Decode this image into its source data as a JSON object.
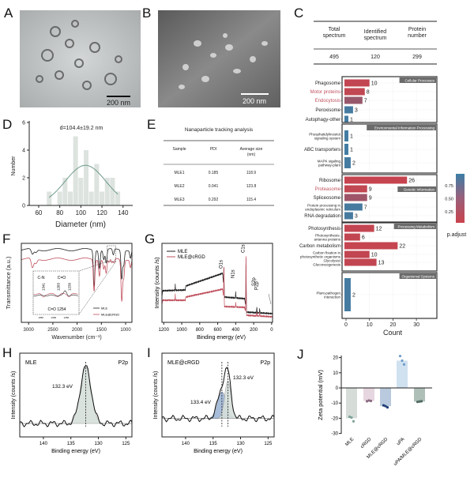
{
  "panel_labels": {
    "a": "A",
    "b": "B",
    "c": "C",
    "d": "D",
    "e": "E",
    "f": "F",
    "g": "G",
    "h": "H",
    "i": "I",
    "j": "J"
  },
  "panel_a": {
    "scale_bar": "200 nm"
  },
  "panel_b": {
    "scale_bar": "200 nm"
  },
  "panel_c_table": {
    "headers": [
      [
        "Total",
        "spectrum"
      ],
      [
        "Identified",
        "spectrum"
      ],
      [
        "Protein",
        "number"
      ]
    ],
    "values": [
      "495",
      "120",
      "299"
    ]
  },
  "panel_e": {
    "title": "Nanaparticle tracking analysis",
    "headers": [
      "Sample",
      "PDI",
      [
        "Average size",
        "(nm)"
      ]
    ],
    "rows": [
      [
        "MLE1",
        "0.185",
        "118.9"
      ],
      [
        "MLE2",
        "0.041",
        "123.8"
      ],
      [
        "MLE3",
        "0.292",
        "115.4"
      ]
    ]
  },
  "chart_data": [
    {
      "panel": "C",
      "type": "bar",
      "orientation": "horizontal",
      "xlabel": "Count",
      "xticks": [
        0,
        10,
        20,
        30
      ],
      "legend": {
        "title": "p.adjust",
        "ticks": [
          0.25,
          0.5,
          0.75
        ],
        "placement": "right",
        "low_color": "#c9434d",
        "high_color": "#3c7fa6"
      },
      "grid": true,
      "groups": [
        {
          "name": "Cellular Processes",
          "items": [
            {
              "label": "Phagosome",
              "count": 10,
              "p_adjust": 0.05
            },
            {
              "label": "Motor proteins",
              "count": 8,
              "p_adjust": 0.06,
              "label_color": "#c0505e"
            },
            {
              "label": "Endocytosis",
              "count": 7,
              "p_adjust": 0.35,
              "label_color": "#c0505e"
            },
            {
              "label": "Peroxisome",
              "count": 3,
              "p_adjust": 0.93
            },
            {
              "label": "Autophagy-other",
              "count": 1,
              "p_adjust": 0.95
            }
          ]
        },
        {
          "name": "Environmental Information Processing",
          "items": [
            {
              "label": "Phosphatidylinositol\nsignaling system",
              "count": 1,
              "p_adjust": 0.95
            },
            {
              "label": "ABC transporters",
              "count": 1,
              "p_adjust": 0.95
            },
            {
              "label": "MAPK sigaling\npathway-plant",
              "count": 2,
              "p_adjust": 0.93
            }
          ]
        },
        {
          "name": "Genetic Information",
          "items": [
            {
              "label": "Ribosome",
              "count": 26,
              "p_adjust": 0.02
            },
            {
              "label": "Proteasome",
              "count": 9,
              "p_adjust": 0.06,
              "label_color": "#c0505e"
            },
            {
              "label": "Spliceosome",
              "count": 9,
              "p_adjust": 0.3
            },
            {
              "label": "Protein processing in\nendoplasmic reticulum",
              "count": 7,
              "p_adjust": 0.92
            },
            {
              "label": "RNA degradation",
              "count": 3,
              "p_adjust": 0.92
            }
          ]
        },
        {
          "name": "Processing Metabolism",
          "items": [
            {
              "label": "Photosynthesis",
              "count": 12,
              "p_adjust": 0.04
            },
            {
              "label": "Photosynthesis-\nantenna proteins",
              "count": 6,
              "p_adjust": 0.05
            },
            {
              "label": "Carbon metabolism",
              "count": 22,
              "p_adjust": 0.03
            },
            {
              "label": "Carbon fixation in\nphotosynthetic organisms",
              "count": 10,
              "p_adjust": 0.05
            },
            {
              "label": "Glycolysis/\nGluconeogenesis",
              "count": 13,
              "p_adjust": 0.05
            }
          ]
        },
        {
          "name": "Organismal Systems",
          "items": [
            {
              "label": "Plant-pathogen\ninteraction",
              "count": 2,
              "p_adjust": 0.93
            }
          ]
        }
      ]
    },
    {
      "panel": "D",
      "type": "bar",
      "title": "d=104.4±19.2 nm",
      "xlabel": "Diameter (nm)",
      "ylabel": "Number",
      "xlim": [
        50,
        150
      ],
      "ylim": [
        0,
        6
      ],
      "xticks": [
        60,
        80,
        100,
        120,
        140
      ],
      "yticks": [
        0,
        2,
        4,
        6
      ],
      "bin_centers": [
        70,
        75,
        80,
        85,
        90,
        95,
        100,
        105,
        110,
        115,
        120,
        125,
        130,
        135
      ],
      "values": [
        1,
        0,
        1,
        2,
        1,
        5,
        2,
        4,
        1,
        3,
        1,
        2,
        2,
        1
      ],
      "fit": {
        "type": "gaussian",
        "mean": 104.4,
        "sd": 19.2,
        "peak": 2.9
      },
      "bar_color": "#dde3df",
      "fit_color": "#6e9a8a"
    },
    {
      "panel": "F",
      "type": "line",
      "xlabel": "Wavenumber (cm⁻¹)",
      "ylabel": "Transmittance (a.u.)",
      "xlim": [
        3150,
        870
      ],
      "xticks": [
        3000,
        2500,
        2000,
        1500,
        1000
      ],
      "series": [
        {
          "name": "MLE",
          "color": "#222222",
          "baseline": 92,
          "bands": [
            [
              2920,
              7
            ],
            [
              2850,
              4
            ],
            [
              1650,
              46
            ],
            [
              1540,
              22
            ],
            [
              1450,
              12
            ],
            [
              1400,
              17
            ],
            [
              1254,
              8
            ],
            [
              1080,
              36
            ],
            [
              1040,
              18
            ],
            [
              900,
              10
            ]
          ]
        },
        {
          "name": "MLE@cRGD",
          "color": "#c0505e",
          "baseline": 80,
          "bands": [
            [
              2920,
              12
            ],
            [
              2850,
              6
            ],
            [
              1650,
              40
            ],
            [
              1540,
              20
            ],
            [
              1450,
              12
            ],
            [
              1400,
              18
            ],
            [
              1341,
              5
            ],
            [
              1283,
              6
            ],
            [
              1239,
              6
            ],
            [
              1080,
              52
            ],
            [
              1040,
              22
            ],
            [
              900,
              10
            ]
          ]
        }
      ],
      "inset": {
        "xticks": [
          1350,
          1300,
          1250
        ],
        "annotations": [
          "C-N",
          "C=O",
          "1341",
          "1283",
          "1239",
          "C=O 1254"
        ]
      }
    },
    {
      "panel": "G",
      "type": "line",
      "xlabel": "Binding energy (eV)",
      "ylabel": "Intensity (counts /s)",
      "xlim": [
        1220,
        -10
      ],
      "xticks": [
        1200,
        1000,
        800,
        600,
        400,
        200,
        0
      ],
      "peaks": [
        {
          "label": "O1s",
          "energy": 531
        },
        {
          "label": "N1s",
          "energy": 400
        },
        {
          "label": "C1s",
          "energy": 285
        },
        {
          "label": "S2p",
          "energy": 165
        },
        {
          "label": "P2p",
          "energy": 133
        }
      ],
      "series": [
        {
          "name": "MLE",
          "color": "#222222",
          "background": [
            [
              1220,
              32
            ],
            [
              1212,
              40
            ],
            [
              960,
              41
            ],
            [
              955,
              46
            ],
            [
              545,
              62
            ],
            [
              525,
              32
            ],
            [
              300,
              30
            ],
            [
              282,
              13
            ],
            [
              -10,
              11
            ]
          ],
          "peak_heights": {
            "O1s": 30,
            "N1s": 7,
            "C1s": 62,
            "S2p": 7,
            "P2p": 5
          }
        },
        {
          "name": "MLE@cRGD",
          "color": "#c0505e",
          "background": [
            [
              1220,
              22
            ],
            [
              1212,
              28
            ],
            [
              960,
              28
            ],
            [
              955,
              32
            ],
            [
              545,
              42
            ],
            [
              525,
              20
            ],
            [
              300,
              19
            ],
            [
              282,
              9
            ],
            [
              -10,
              7
            ]
          ],
          "peak_heights": {
            "O1s": 48,
            "N1s": 5,
            "C1s": 80,
            "S2p": 5,
            "P2p": 4
          }
        }
      ]
    },
    {
      "panel": "H",
      "type": "line",
      "sample": "MLE",
      "region": "P2p",
      "xlabel": "Binding energy (eV)",
      "ylabel": "Intensity (counts /s)",
      "xlim": [
        144.3,
        123.9
      ],
      "xticks": [
        140,
        135,
        130,
        125
      ],
      "components": [
        {
          "center": 132.3,
          "label": "132.3 eV",
          "amplitude": 68,
          "fwhm": 2.3,
          "color": "#d6dfdb"
        }
      ],
      "baseline": 16
    },
    {
      "panel": "I",
      "type": "line",
      "sample": "MLE@cRGD",
      "region": "P2p",
      "xlabel": "Binding energy (eV)",
      "ylabel": "Intensity (counts /s)",
      "xlim": [
        144.3,
        123.9
      ],
      "xticks": [
        140,
        135,
        130,
        125
      ],
      "components": [
        {
          "center": 133.4,
          "label": "133.4 eV",
          "amplitude": 32,
          "fwhm": 1.9,
          "color": "#9fb6d6"
        },
        {
          "center": 132.3,
          "label": "132.3 eV",
          "amplitude": 45,
          "fwhm": 1.4,
          "color": "#d6dfdb"
        }
      ],
      "baseline": 22
    },
    {
      "panel": "J",
      "type": "bar",
      "ylabel": "Zeta potential (mV)",
      "ylim": [
        -30,
        25
      ],
      "yticks": [
        -30,
        -20,
        -10,
        0,
        10,
        20
      ],
      "categories": [
        "MLE",
        "cRGD",
        "MLE@cRGD",
        "uPA",
        "uPA/MLE@cRGD"
      ],
      "values": [
        -20,
        -8.5,
        -12,
        18,
        -9
      ],
      "points": [
        [
          -19,
          -19.5,
          -22
        ],
        [
          -8.8,
          -8.3,
          -8.6
        ],
        [
          -11.5,
          -12,
          -12.8
        ],
        [
          21,
          18,
          15.5
        ],
        [
          -9.2,
          -9,
          -8.8
        ]
      ],
      "bar_colors": [
        "#d6ddd9",
        "#e6d6df",
        "#b9c9de",
        "#d0e1f0",
        "#aebfb8"
      ],
      "point_colors": [
        "#7fa39a",
        "#8a6a80",
        "#1f3c78",
        "#6f9cc8",
        "#4f6a62"
      ]
    }
  ]
}
